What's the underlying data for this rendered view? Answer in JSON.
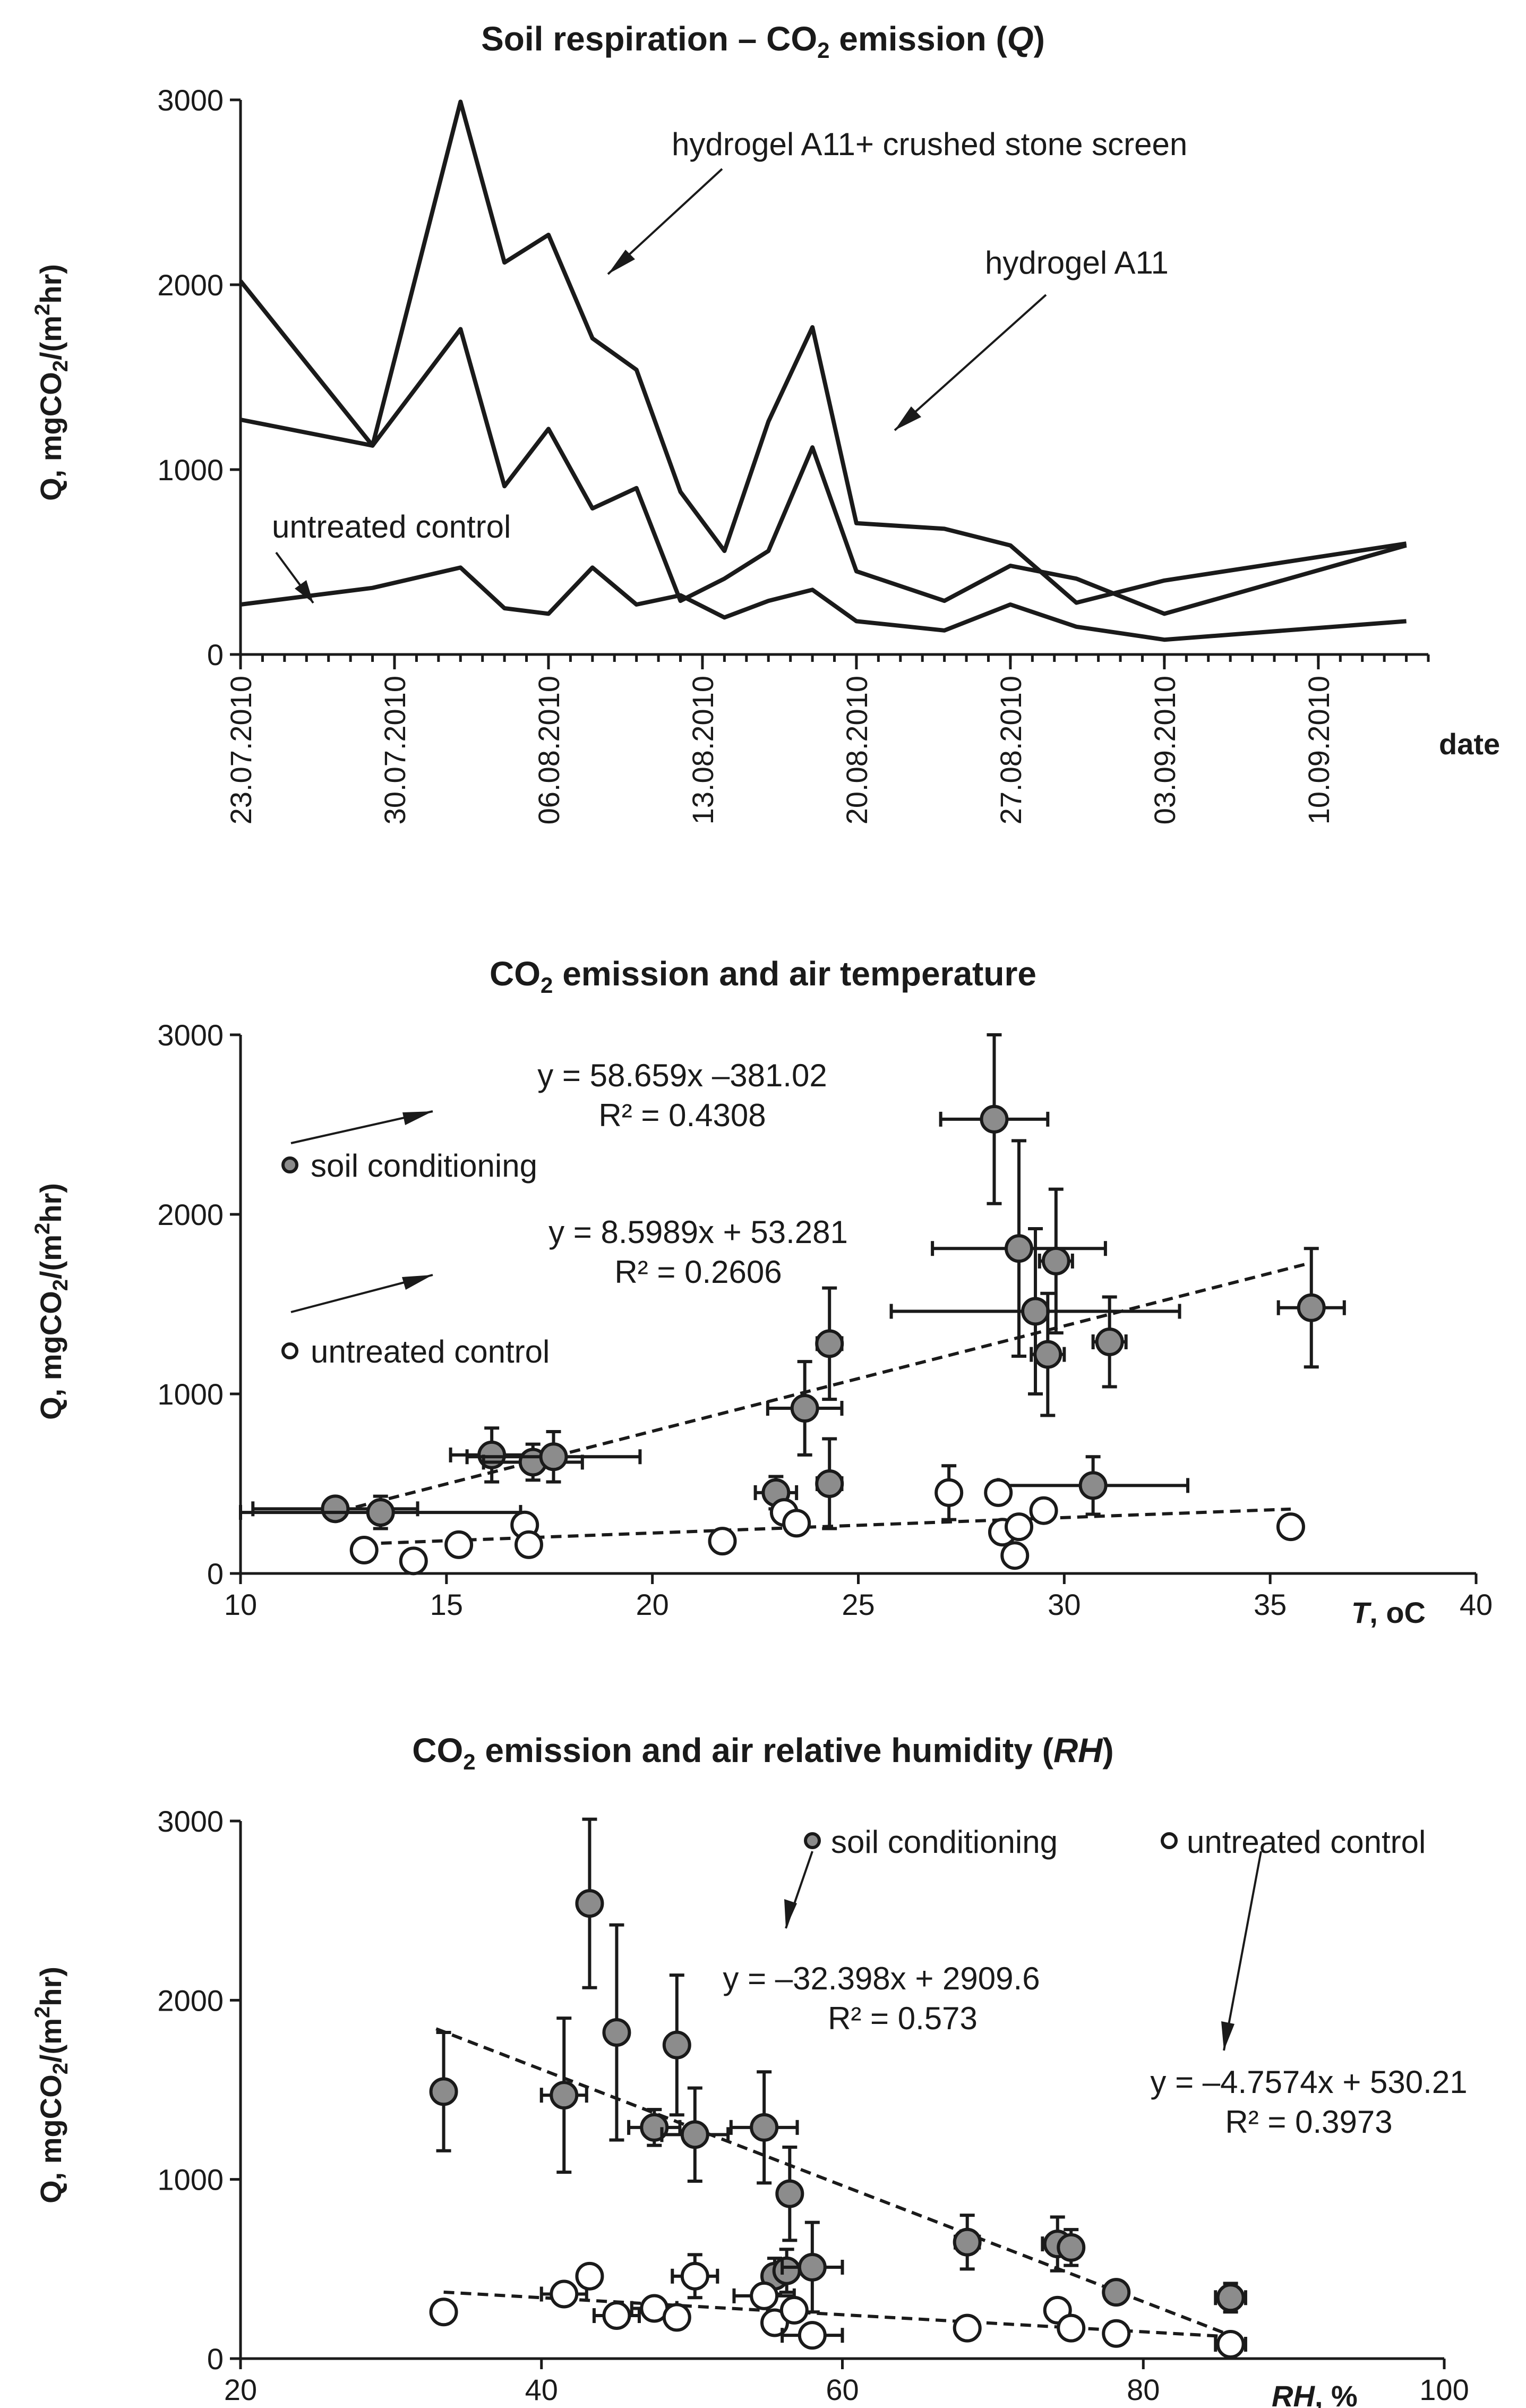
{
  "chart_data": [
    {
      "type": "line",
      "title": "Soil respiration – CO",
      "title_sub": "2",
      "title_tail": " emission (",
      "title_q": "Q",
      "title_end": ")",
      "ylabel": "Q, mgCO2/(m2hr)",
      "xlabel": "date",
      "ylim": [
        0,
        3000
      ],
      "yticks": [
        "0",
        "1000",
        "2000",
        "3000"
      ],
      "xlim": [
        "2010-07-23",
        "2010-09-15"
      ],
      "xticks": [
        "23.07.2010",
        "30.07.2010",
        "06.08.2010",
        "13.08.2010",
        "20.08.2010",
        "27.08.2010",
        "03.09.2010",
        "10.09.2010"
      ],
      "series": [
        {
          "name": "hydrogel A11+ crushed  stone  screen",
          "x": [
            "2010-07-23",
            "2010-07-29",
            "2010-08-02",
            "2010-08-04",
            "2010-08-06",
            "2010-08-08",
            "2010-08-10",
            "2010-08-12",
            "2010-08-14",
            "2010-08-16",
            "2010-08-18",
            "2010-08-20",
            "2010-08-24",
            "2010-08-27",
            "2010-08-30",
            "2010-09-03",
            "2010-09-14"
          ],
          "y": [
            2020,
            1130,
            2990,
            2120,
            2270,
            1710,
            1540,
            880,
            560,
            1260,
            1770,
            710,
            680,
            590,
            280,
            400,
            600
          ]
        },
        {
          "name": "hydrogel A11",
          "x": [
            "2010-07-23",
            "2010-07-29",
            "2010-08-02",
            "2010-08-04",
            "2010-08-06",
            "2010-08-08",
            "2010-08-10",
            "2010-08-12",
            "2010-08-14",
            "2010-08-16",
            "2010-08-18",
            "2010-08-20",
            "2010-08-24",
            "2010-08-27",
            "2010-08-30",
            "2010-09-03",
            "2010-09-14"
          ],
          "y": [
            1270,
            1130,
            1760,
            910,
            1220,
            790,
            900,
            290,
            410,
            560,
            1120,
            450,
            290,
            480,
            410,
            220,
            590
          ]
        },
        {
          "name": "untreated  control",
          "x": [
            "2010-07-23",
            "2010-07-29",
            "2010-08-02",
            "2010-08-04",
            "2010-08-06",
            "2010-08-08",
            "2010-08-10",
            "2010-08-12",
            "2010-08-14",
            "2010-08-16",
            "2010-08-18",
            "2010-08-20",
            "2010-08-24",
            "2010-08-27",
            "2010-08-30",
            "2010-09-03",
            "2010-09-14"
          ],
          "y": [
            270,
            360,
            470,
            250,
            220,
            470,
            270,
            320,
            200,
            290,
            350,
            180,
            130,
            270,
            150,
            80,
            180
          ]
        }
      ]
    },
    {
      "type": "scatter",
      "title": "CO",
      "title_sub": "2",
      "title_tail": " emission and air temperature",
      "ylabel": "Q, mgCO2/(m2hr)",
      "xlabel_var": "T",
      "xlabel_unit": ", oC",
      "xlim": [
        10,
        40
      ],
      "ylim": [
        0,
        3000
      ],
      "xticks": [
        "10",
        "15",
        "20",
        "25",
        "30",
        "35",
        "40"
      ],
      "yticks": [
        "0",
        "1000",
        "2000",
        "3000"
      ],
      "series": [
        {
          "name": "soil conditioning",
          "trend": {
            "equation": "y = 58.659x –381.02",
            "r2": "R² = 0.4308",
            "x": [
              12.0,
              36.0
            ]
          },
          "points": [
            {
              "x": 12.3,
              "y": 360,
              "xe": 2.0,
              "ye": 60
            },
            {
              "x": 13.4,
              "y": 340,
              "xe": 3.4,
              "ye": 90
            },
            {
              "x": 16.1,
              "y": 660,
              "xe": 1.0,
              "ye": 150
            },
            {
              "x": 17.1,
              "y": 620,
              "xe": 1.2,
              "ye": 100
            },
            {
              "x": 17.6,
              "y": 650,
              "xe": 2.1,
              "ye": 140
            },
            {
              "x": 23.0,
              "y": 450,
              "xe": 0.5,
              "ye": 90
            },
            {
              "x": 24.3,
              "y": 500,
              "xe": 0.3,
              "ye": 250
            },
            {
              "x": 23.7,
              "y": 920,
              "xe": 0.9,
              "ye": 260
            },
            {
              "x": 24.3,
              "y": 1280,
              "xe": 0.3,
              "ye": 310
            },
            {
              "x": 28.3,
              "y": 2530,
              "xe": 1.3,
              "ye": 470
            },
            {
              "x": 28.9,
              "y": 1810,
              "xe": 2.1,
              "ye": 600
            },
            {
              "x": 29.8,
              "y": 1740,
              "xe": 0.4,
              "ye": 400
            },
            {
              "x": 29.3,
              "y": 1460,
              "xe": 3.5,
              "ye": 460
            },
            {
              "x": 29.6,
              "y": 1220,
              "xe": 0.4,
              "ye": 340
            },
            {
              "x": 31.1,
              "y": 1290,
              "xe": 0.4,
              "ye": 250
            },
            {
              "x": 30.7,
              "y": 490,
              "xe": 2.3,
              "ye": 160
            },
            {
              "x": 36.0,
              "y": 1480,
              "xe": 0.8,
              "ye": 330
            }
          ]
        },
        {
          "name": "untreated control",
          "trend": {
            "equation": "y = 8.5989x + 53.281",
            "r2": "R² = 0.2606",
            "x": [
              13.0,
              35.5
            ]
          },
          "points": [
            {
              "x": 13.0,
              "y": 130,
              "xe": 0,
              "ye": 0
            },
            {
              "x": 14.2,
              "y": 70,
              "xe": 0,
              "ye": 0
            },
            {
              "x": 15.3,
              "y": 160,
              "xe": 0,
              "ye": 0
            },
            {
              "x": 16.9,
              "y": 270,
              "xe": 0,
              "ye": 0
            },
            {
              "x": 17.0,
              "y": 160,
              "xe": 0,
              "ye": 0
            },
            {
              "x": 21.7,
              "y": 180,
              "xe": 0,
              "ye": 0
            },
            {
              "x": 23.2,
              "y": 340,
              "xe": 0,
              "ye": 0
            },
            {
              "x": 23.5,
              "y": 280,
              "xe": 0,
              "ye": 0
            },
            {
              "x": 27.2,
              "y": 450,
              "xe": 0,
              "ye": 150
            },
            {
              "x": 28.4,
              "y": 450,
              "xe": 0,
              "ye": 0
            },
            {
              "x": 28.5,
              "y": 230,
              "xe": 0,
              "ye": 0
            },
            {
              "x": 28.9,
              "y": 260,
              "xe": 0,
              "ye": 0
            },
            {
              "x": 28.8,
              "y": 100,
              "xe": 0,
              "ye": 0
            },
            {
              "x": 29.5,
              "y": 350,
              "xe": 0,
              "ye": 0
            },
            {
              "x": 35.5,
              "y": 260,
              "xe": 0,
              "ye": 0
            }
          ]
        }
      ]
    },
    {
      "type": "scatter",
      "title": "CO",
      "title_sub": "2",
      "title_tail": " emission and air relative humidity (",
      "title_var": "RH",
      "title_end": ")",
      "ylabel": "Q, mgCO2/(m2hr)",
      "xlabel_var": "RH",
      "xlabel_unit": ", %",
      "xlim": [
        20,
        100
      ],
      "ylim": [
        0,
        3000
      ],
      "xticks": [
        "20",
        "40",
        "60",
        "80",
        "100"
      ],
      "yticks": [
        "0",
        "1000",
        "2000",
        "3000"
      ],
      "series": [
        {
          "name": "soil conditioning",
          "trend": {
            "equation": "y = –32.398x + 2909.6",
            "r2": "R² = 0.573",
            "x": [
              33.0,
              86.0
            ]
          },
          "points": [
            {
              "x": 33.5,
              "y": 1490,
              "xe": 0,
              "ye": 330
            },
            {
              "x": 41.5,
              "y": 1470,
              "xe": 1.5,
              "ye": 430
            },
            {
              "x": 43.2,
              "y": 2540,
              "xe": 0,
              "ye": 470
            },
            {
              "x": 45.0,
              "y": 1820,
              "xe": 0.7,
              "ye": 600
            },
            {
              "x": 47.5,
              "y": 1290,
              "xe": 1.7,
              "ye": 100
            },
            {
              "x": 49.0,
              "y": 1750,
              "xe": 0.7,
              "ye": 390
            },
            {
              "x": 50.2,
              "y": 1250,
              "xe": 2.2,
              "ye": 260
            },
            {
              "x": 54.8,
              "y": 1290,
              "xe": 2.2,
              "ye": 310
            },
            {
              "x": 56.5,
              "y": 920,
              "xe": 0.5,
              "ye": 260
            },
            {
              "x": 55.5,
              "y": 460,
              "xe": 0.5,
              "ye": 100
            },
            {
              "x": 56.3,
              "y": 490,
              "xe": 0.5,
              "ye": 120
            },
            {
              "x": 58.0,
              "y": 510,
              "xe": 2.0,
              "ye": 250
            },
            {
              "x": 68.3,
              "y": 650,
              "xe": 0.8,
              "ye": 150
            },
            {
              "x": 74.3,
              "y": 640,
              "xe": 1.0,
              "ye": 150
            },
            {
              "x": 75.2,
              "y": 620,
              "xe": 0.5,
              "ye": 100
            },
            {
              "x": 78.2,
              "y": 370,
              "xe": 0.5,
              "ye": 60
            },
            {
              "x": 85.8,
              "y": 340,
              "xe": 1.0,
              "ye": 80
            }
          ]
        },
        {
          "name": "untreated control",
          "trend": {
            "equation": "y = –4.7574x + 530.21",
            "r2": "R² = 0.3973",
            "x": [
              33.5,
              86.0
            ]
          },
          "points": [
            {
              "x": 33.5,
              "y": 260,
              "xe": 0,
              "ye": 0
            },
            {
              "x": 41.5,
              "y": 360,
              "xe": 1.5,
              "ye": 0
            },
            {
              "x": 43.2,
              "y": 460,
              "xe": 0,
              "ye": 0
            },
            {
              "x": 45.0,
              "y": 240,
              "xe": 1.5,
              "ye": 0
            },
            {
              "x": 47.5,
              "y": 280,
              "xe": 1.5,
              "ye": 0
            },
            {
              "x": 49.0,
              "y": 230,
              "xe": 0,
              "ye": 0
            },
            {
              "x": 50.2,
              "y": 460,
              "xe": 1.5,
              "ye": 120
            },
            {
              "x": 54.8,
              "y": 350,
              "xe": 2.0,
              "ye": 0
            },
            {
              "x": 55.5,
              "y": 200,
              "xe": 0,
              "ye": 0
            },
            {
              "x": 56.8,
              "y": 270,
              "xe": 0,
              "ye": 0
            },
            {
              "x": 58.0,
              "y": 130,
              "xe": 2.0,
              "ye": 0
            },
            {
              "x": 68.3,
              "y": 170,
              "xe": 0,
              "ye": 0
            },
            {
              "x": 74.3,
              "y": 270,
              "xe": 0,
              "ye": 0
            },
            {
              "x": 75.2,
              "y": 170,
              "xe": 0,
              "ye": 0
            },
            {
              "x": 78.2,
              "y": 140,
              "xe": 0,
              "ye": 0
            },
            {
              "x": 85.8,
              "y": 80,
              "xe": 1.0,
              "ye": 0
            }
          ]
        }
      ]
    }
  ]
}
